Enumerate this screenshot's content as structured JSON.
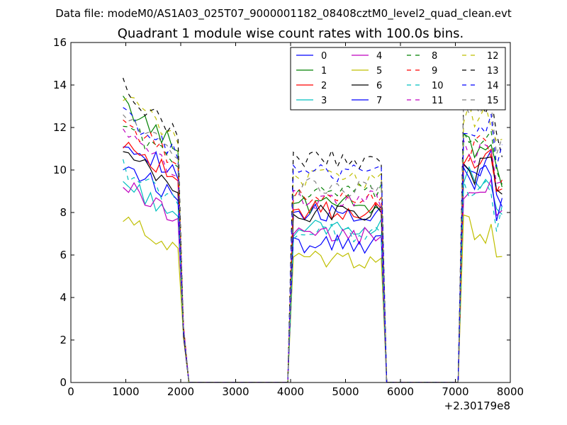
{
  "chart_data": {
    "type": "line",
    "suptitle": "Data file: modeM0/AS1A03_025T07_9000001182_08408cztM0_level2_quad_clean.evt",
    "title": "Quadrant 1 module wise count rates with 100.0s bins.",
    "xlabel": "",
    "ylabel": "",
    "xlim": [
      0,
      8000
    ],
    "ylim": [
      0,
      16
    ],
    "x_offset_label": "+2.30179e8",
    "xticks": [
      0,
      1000,
      2000,
      3000,
      4000,
      5000,
      6000,
      7000,
      8000
    ],
    "xtick_labels": [
      "0",
      "1000",
      "2000",
      "3000",
      "4000",
      "5000",
      "6000",
      "7000",
      "8000"
    ],
    "yticks": [
      0,
      2,
      4,
      6,
      8,
      10,
      12,
      14,
      16
    ],
    "ytick_labels": [
      "0",
      "2",
      "4",
      "6",
      "8",
      "10",
      "12",
      "14",
      "16"
    ],
    "legend_position": "top-right",
    "legend_columns": 4,
    "x_segments": [
      {
        "start": 950,
        "end": 1950,
        "step": 100
      },
      {
        "start": 2050,
        "end": 3950,
        "step": 100
      },
      {
        "start": 3950,
        "end": 5650,
        "step": 100
      },
      {
        "start": 5750,
        "end": 7050,
        "step": 100
      },
      {
        "start": 7050,
        "end": 7850,
        "step": 100
      }
    ],
    "series": [
      {
        "name": "0",
        "color": "#0000ff",
        "dash": "solid",
        "base": 10.3,
        "mid": 8.0,
        "late": 10.4
      },
      {
        "name": "1",
        "color": "#008000",
        "dash": "solid",
        "base": 11.7,
        "mid": 8.4,
        "late": 11.2
      },
      {
        "name": "2",
        "color": "#ff0000",
        "dash": "solid",
        "base": 10.2,
        "mid": 8.1,
        "late": 10.5
      },
      {
        "name": "3",
        "color": "#00bfbf",
        "dash": "solid",
        "base": 8.4,
        "mid": 7.3,
        "late": 9.5
      },
      {
        "name": "4",
        "color": "#bf00bf",
        "dash": "solid",
        "base": 8.3,
        "mid": 6.9,
        "late": 9.0
      },
      {
        "name": "5",
        "color": "#bfbf00",
        "dash": "solid",
        "base": 6.8,
        "mid": 5.8,
        "late": 7.2
      },
      {
        "name": "6",
        "color": "#000000",
        "dash": "solid",
        "base": 9.6,
        "mid": 8.0,
        "late": 10.0
      },
      {
        "name": "7",
        "color": "#0000ff",
        "dash": "solid",
        "base": 9.2,
        "mid": 6.5,
        "late": 9.6
      },
      {
        "name": "8",
        "color": "#008000",
        "dash": "dashed",
        "base": 10.9,
        "mid": 8.9,
        "late": 11.3
      },
      {
        "name": "9",
        "color": "#ff0000",
        "dash": "dashed",
        "base": 11.0,
        "mid": 8.7,
        "late": 11.0
      },
      {
        "name": "10",
        "color": "#00bfbf",
        "dash": "dashed",
        "base": 9.0,
        "mid": 7.0,
        "late": 9.3
      },
      {
        "name": "11",
        "color": "#bf00bf",
        "dash": "dashed",
        "base": 10.4,
        "mid": 8.6,
        "late": 10.8
      },
      {
        "name": "12",
        "color": "#bfbf00",
        "dash": "dashed",
        "base": 12.1,
        "mid": 9.6,
        "late": 12.6
      },
      {
        "name": "13",
        "color": "#000000",
        "dash": "dashed",
        "base": 12.4,
        "mid": 10.5,
        "late": 12.9
      },
      {
        "name": "14",
        "color": "#0000ff",
        "dash": "dashed",
        "base": 11.3,
        "mid": 9.9,
        "late": 12.2
      },
      {
        "name": "15",
        "color": "#808080",
        "dash": "dashed",
        "base": 11.3,
        "mid": 9.2,
        "late": 12.6
      }
    ]
  }
}
